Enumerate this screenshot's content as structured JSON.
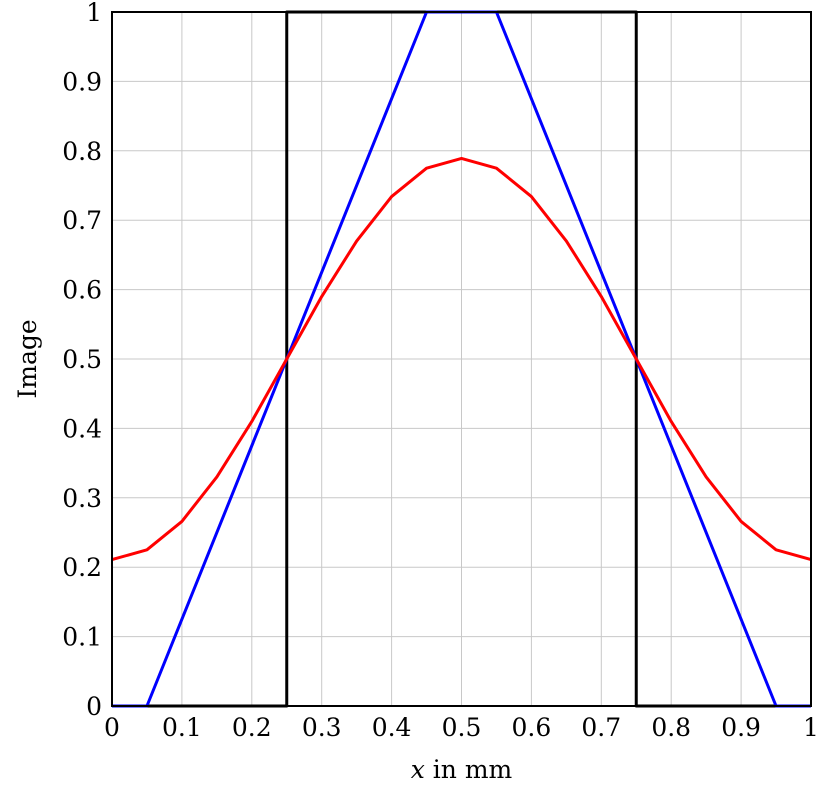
{
  "chart_data": {
    "type": "line",
    "xlabel_var": "x",
    "xlabel_rest": " in mm",
    "ylabel": "Image",
    "xlim": [
      0,
      1
    ],
    "ylim": [
      0,
      1
    ],
    "grid": true,
    "xticks": [
      0,
      0.1,
      0.2,
      0.3,
      0.4,
      0.5,
      0.6,
      0.7,
      0.8,
      0.9,
      1
    ],
    "xtick_labels": [
      "0",
      "0.1",
      "0.2",
      "0.3",
      "0.4",
      "0.5",
      "0.6",
      "0.7",
      "0.8",
      "0.9",
      "1"
    ],
    "yticks": [
      0,
      0.1,
      0.2,
      0.3,
      0.4,
      0.5,
      0.6,
      0.7,
      0.8,
      0.9,
      1
    ],
    "ytick_labels": [
      "0",
      "0.1",
      "0.2",
      "0.3",
      "0.4",
      "0.5",
      "0.6",
      "0.7",
      "0.8",
      "0.9",
      "1"
    ],
    "series": [
      {
        "color": "#000000",
        "x": [
          0,
          0.25,
          0.25,
          0.75,
          0.75,
          1
        ],
        "y": [
          0,
          0,
          1,
          1,
          0,
          0
        ]
      },
      {
        "color": "#0000ff",
        "x": [
          0,
          0.05,
          0.45,
          0.55,
          0.95,
          1
        ],
        "y": [
          0,
          0,
          1,
          1,
          0,
          0
        ]
      },
      {
        "color": "#ff0000",
        "x": [
          0,
          0.05,
          0.1,
          0.15,
          0.2,
          0.25,
          0.3,
          0.35,
          0.4,
          0.45,
          0.5,
          0.55,
          0.6,
          0.65,
          0.7,
          0.75,
          0.8,
          0.85,
          0.9,
          0.95,
          1
        ],
        "y": [
          0.211,
          0.225,
          0.266,
          0.33,
          0.41,
          0.5,
          0.59,
          0.67,
          0.734,
          0.775,
          0.789,
          0.775,
          0.734,
          0.67,
          0.59,
          0.5,
          0.41,
          0.33,
          0.266,
          0.225,
          0.211
        ]
      }
    ]
  }
}
